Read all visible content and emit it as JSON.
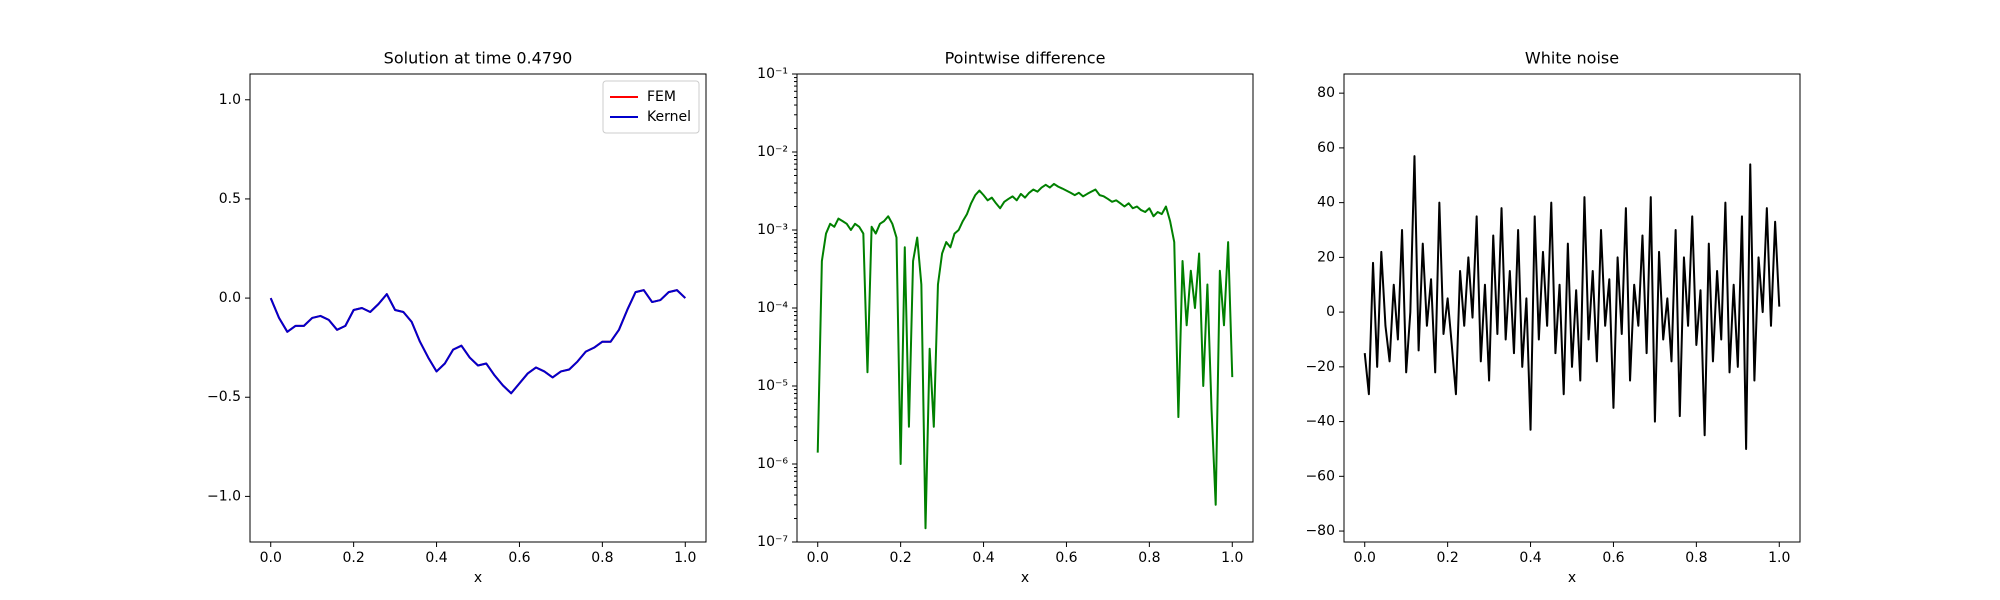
{
  "chart_data": [
    {
      "type": "line",
      "title": "Solution at time 0.4790",
      "x_label": "x",
      "legend": "upper right",
      "x": [
        0,
        0.02,
        0.04,
        0.06,
        0.08,
        0.1,
        0.12,
        0.14,
        0.16,
        0.18,
        0.2,
        0.22,
        0.24,
        0.26,
        0.28,
        0.3,
        0.32,
        0.34,
        0.36,
        0.38,
        0.4,
        0.42,
        0.44,
        0.46,
        0.48,
        0.5,
        0.52,
        0.54,
        0.56,
        0.58,
        0.6,
        0.62,
        0.64,
        0.66,
        0.68,
        0.7,
        0.72,
        0.74,
        0.76,
        0.78,
        0.8,
        0.82,
        0.84,
        0.86,
        0.88,
        0.9,
        0.92,
        0.94,
        0.96,
        0.98,
        1.0
      ],
      "series": [
        {
          "name": "FEM",
          "color": "#ff0000",
          "values": [
            0,
            -0.1,
            -0.17,
            -0.14,
            -0.14,
            -0.1,
            -0.09,
            -0.11,
            -0.16,
            -0.14,
            -0.06,
            -0.05,
            -0.07,
            -0.03,
            0.02,
            -0.06,
            -0.07,
            -0.12,
            -0.22,
            -0.3,
            -0.37,
            -0.33,
            -0.26,
            -0.24,
            -0.3,
            -0.34,
            -0.33,
            -0.39,
            -0.44,
            -0.48,
            -0.43,
            -0.38,
            -0.35,
            -0.37,
            -0.4,
            -0.37,
            -0.36,
            -0.32,
            -0.27,
            -0.25,
            -0.22,
            -0.22,
            -0.16,
            -0.06,
            0.03,
            0.04,
            -0.02,
            -0.01,
            0.03,
            0.04,
            0
          ]
        },
        {
          "name": "Kernel",
          "color": "#0000cc",
          "values": [
            0,
            -0.1,
            -0.17,
            -0.14,
            -0.14,
            -0.1,
            -0.09,
            -0.11,
            -0.16,
            -0.14,
            -0.06,
            -0.05,
            -0.07,
            -0.03,
            0.02,
            -0.06,
            -0.07,
            -0.12,
            -0.22,
            -0.3,
            -0.37,
            -0.33,
            -0.26,
            -0.24,
            -0.3,
            -0.34,
            -0.33,
            -0.39,
            -0.44,
            -0.48,
            -0.43,
            -0.38,
            -0.35,
            -0.37,
            -0.4,
            -0.37,
            -0.36,
            -0.32,
            -0.27,
            -0.25,
            -0.22,
            -0.22,
            -0.16,
            -0.06,
            0.03,
            0.04,
            -0.02,
            -0.01,
            0.03,
            0.04,
            0
          ]
        }
      ],
      "xlim": [
        -0.05,
        1.05
      ],
      "ylim": [
        -1.23,
        1.13
      ],
      "xticks": [
        {
          "value": 0,
          "label": "0.0"
        },
        {
          "value": 0.2,
          "label": "0.2"
        },
        {
          "value": 0.4,
          "label": "0.4"
        },
        {
          "value": 0.6,
          "label": "0.6"
        },
        {
          "value": 0.8,
          "label": "0.8"
        },
        {
          "value": 1,
          "label": "1.0"
        }
      ],
      "yticks": [
        {
          "value": -1,
          "label": "−1.0"
        },
        {
          "value": -0.5,
          "label": "−0.5"
        },
        {
          "value": 0,
          "label": "0.0"
        },
        {
          "value": 0.5,
          "label": "0.5"
        },
        {
          "value": 1,
          "label": "1.0"
        }
      ]
    },
    {
      "type": "line",
      "title": "Pointwise difference",
      "x_label": "x",
      "log_y": true,
      "x": [
        0,
        0.01,
        0.02,
        0.03,
        0.04,
        0.05,
        0.06,
        0.07,
        0.08,
        0.09,
        0.1,
        0.11,
        0.12,
        0.13,
        0.14,
        0.15,
        0.16,
        0.17,
        0.18,
        0.19,
        0.2,
        0.21,
        0.22,
        0.23,
        0.24,
        0.25,
        0.26,
        0.27,
        0.28,
        0.29,
        0.3,
        0.31,
        0.32,
        0.33,
        0.34,
        0.35,
        0.36,
        0.37,
        0.38,
        0.39,
        0.4,
        0.41,
        0.42,
        0.43,
        0.44,
        0.45,
        0.46,
        0.47,
        0.48,
        0.49,
        0.5,
        0.51,
        0.52,
        0.53,
        0.54,
        0.55,
        0.56,
        0.57,
        0.58,
        0.59,
        0.6,
        0.61,
        0.62,
        0.63,
        0.64,
        0.65,
        0.66,
        0.67,
        0.68,
        0.69,
        0.7,
        0.71,
        0.72,
        0.73,
        0.74,
        0.75,
        0.76,
        0.77,
        0.78,
        0.79,
        0.8,
        0.81,
        0.82,
        0.83,
        0.84,
        0.85,
        0.86,
        0.87,
        0.88,
        0.89,
        0.9,
        0.91,
        0.92,
        0.93,
        0.94,
        0.95,
        0.96,
        0.97,
        0.98,
        0.99,
        1.0
      ],
      "series": [
        {
          "color": "#008000",
          "values": [
            1.4e-06,
            0.0004,
            0.0009,
            0.0012,
            0.0011,
            0.0014,
            0.0013,
            0.0012,
            0.001,
            0.0012,
            0.0011,
            0.0009,
            1.5e-05,
            0.0011,
            0.0009,
            0.0012,
            0.0013,
            0.0015,
            0.0012,
            0.0008,
            1e-06,
            0.0006,
            3e-06,
            0.0004,
            0.0008,
            0.0002,
            1.5e-07,
            3e-05,
            3e-06,
            0.0002,
            0.0005,
            0.0007,
            0.0006,
            0.0009,
            0.001,
            0.0013,
            0.0016,
            0.0022,
            0.0028,
            0.0032,
            0.0028,
            0.0024,
            0.0026,
            0.0022,
            0.0019,
            0.0023,
            0.0025,
            0.0027,
            0.0024,
            0.0029,
            0.0026,
            0.003,
            0.0033,
            0.0031,
            0.0035,
            0.0038,
            0.0035,
            0.0039,
            0.0036,
            0.0034,
            0.0032,
            0.003,
            0.0028,
            0.003,
            0.0027,
            0.0029,
            0.0031,
            0.0033,
            0.0028,
            0.0027,
            0.0025,
            0.0023,
            0.0024,
            0.0022,
            0.002,
            0.0022,
            0.0019,
            0.002,
            0.0018,
            0.0017,
            0.0019,
            0.0015,
            0.0017,
            0.0016,
            0.002,
            0.0013,
            0.0007,
            4e-06,
            0.0004,
            6e-05,
            0.0003,
            0.0001,
            0.0005,
            1e-05,
            0.0002,
            5e-06,
            3e-07,
            0.0003,
            6e-05,
            0.0007,
            1.3e-05
          ]
        }
      ],
      "xlim": [
        -0.05,
        1.05
      ],
      "ylim": [
        1e-07,
        0.1
      ],
      "xticks": [
        {
          "value": 0,
          "label": "0.0"
        },
        {
          "value": 0.2,
          "label": "0.2"
        },
        {
          "value": 0.4,
          "label": "0.4"
        },
        {
          "value": 0.6,
          "label": "0.6"
        },
        {
          "value": 0.8,
          "label": "0.8"
        },
        {
          "value": 1,
          "label": "1.0"
        }
      ],
      "yticks": [
        {
          "value": 1e-07,
          "label": "10⁻⁷"
        },
        {
          "value": 1e-06,
          "label": "10⁻⁶"
        },
        {
          "value": 1e-05,
          "label": "10⁻⁵"
        },
        {
          "value": 0.0001,
          "label": "10⁻⁴"
        },
        {
          "value": 0.001,
          "label": "10⁻³"
        },
        {
          "value": 0.01,
          "label": "10⁻²"
        },
        {
          "value": 0.1,
          "label": "10⁻¹"
        }
      ]
    },
    {
      "type": "line",
      "title": "White noise",
      "x_label": "x",
      "x": [
        0,
        0.01,
        0.02,
        0.03,
        0.04,
        0.05,
        0.06,
        0.07,
        0.08,
        0.09,
        0.1,
        0.11,
        0.12,
        0.13,
        0.14,
        0.15,
        0.16,
        0.17,
        0.18,
        0.19,
        0.2,
        0.21,
        0.22,
        0.23,
        0.24,
        0.25,
        0.26,
        0.27,
        0.28,
        0.29,
        0.3,
        0.31,
        0.32,
        0.33,
        0.34,
        0.35,
        0.36,
        0.37,
        0.38,
        0.39,
        0.4,
        0.41,
        0.42,
        0.43,
        0.44,
        0.45,
        0.46,
        0.47,
        0.48,
        0.49,
        0.5,
        0.51,
        0.52,
        0.53,
        0.54,
        0.55,
        0.56,
        0.57,
        0.58,
        0.59,
        0.6,
        0.61,
        0.62,
        0.63,
        0.64,
        0.65,
        0.66,
        0.67,
        0.68,
        0.69,
        0.7,
        0.71,
        0.72,
        0.73,
        0.74,
        0.75,
        0.76,
        0.77,
        0.78,
        0.79,
        0.8,
        0.81,
        0.82,
        0.83,
        0.84,
        0.85,
        0.86,
        0.87,
        0.88,
        0.89,
        0.9,
        0.91,
        0.92,
        0.93,
        0.94,
        0.95,
        0.96,
        0.97,
        0.98,
        0.99,
        1.0
      ],
      "series": [
        {
          "color": "#000000",
          "values": [
            -15,
            -30,
            18,
            -20,
            22,
            -5,
            -18,
            10,
            -10,
            30,
            -22,
            0,
            57,
            -14,
            25,
            -5,
            12,
            -22,
            40,
            -8,
            5,
            -12,
            -30,
            15,
            -5,
            20,
            -2,
            35,
            -18,
            10,
            -25,
            28,
            -8,
            38,
            -10,
            15,
            -15,
            30,
            -20,
            5,
            -43,
            35,
            -10,
            22,
            -5,
            40,
            -15,
            10,
            -30,
            25,
            -20,
            8,
            -25,
            42,
            -10,
            15,
            -18,
            30,
            -5,
            12,
            -35,
            20,
            -8,
            38,
            -25,
            10,
            -5,
            28,
            -15,
            42,
            -40,
            22,
            -10,
            5,
            -18,
            30,
            -38,
            20,
            -5,
            35,
            -12,
            8,
            -45,
            25,
            -18,
            15,
            -10,
            40,
            -22,
            10,
            -20,
            35,
            -50,
            54,
            -25,
            20,
            0,
            38,
            -5,
            33,
            2
          ]
        }
      ],
      "xlim": [
        -0.05,
        1.05
      ],
      "ylim": [
        -84,
        87
      ],
      "xticks": [
        {
          "value": 0,
          "label": "0.0"
        },
        {
          "value": 0.2,
          "label": "0.2"
        },
        {
          "value": 0.4,
          "label": "0.4"
        },
        {
          "value": 0.6,
          "label": "0.6"
        },
        {
          "value": 0.8,
          "label": "0.8"
        },
        {
          "value": 1,
          "label": "1.0"
        }
      ],
      "yticks": [
        {
          "value": -80,
          "label": "−80"
        },
        {
          "value": -60,
          "label": "−60"
        },
        {
          "value": -40,
          "label": "−40"
        },
        {
          "value": -20,
          "label": "−20"
        },
        0,
        20,
        40,
        60,
        80
      ]
    }
  ]
}
